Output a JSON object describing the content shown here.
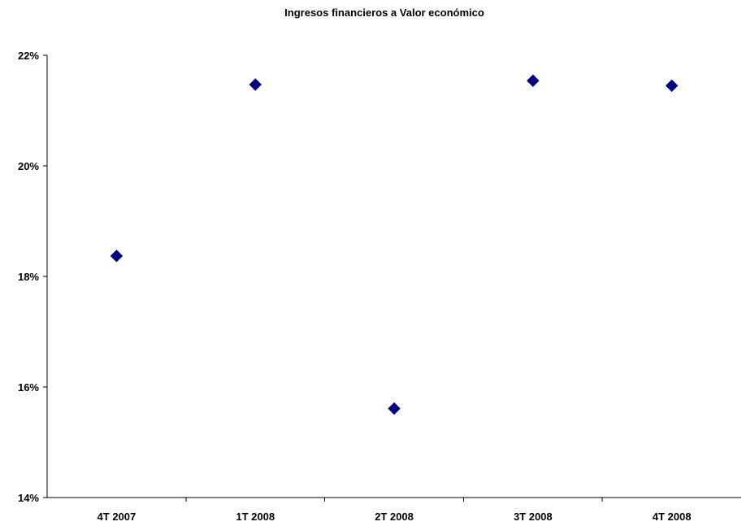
{
  "chart_data": {
    "type": "scatter",
    "title": "Ingresos financieros a Valor económico",
    "xlabel": "",
    "ylabel": "",
    "categories": [
      "4T 2007",
      "1T 2008",
      "2T 2008",
      "3T 2008",
      "4T 2008"
    ],
    "series": [
      {
        "values": [
          18.37,
          21.47,
          15.61,
          21.54,
          21.45
        ],
        "color": "#000080",
        "marker": "diamond"
      }
    ],
    "ylim": [
      14,
      22
    ],
    "yticks": [
      14,
      16,
      18,
      20,
      22
    ],
    "ytick_labels": [
      "14%",
      "16%",
      "18%",
      "20%",
      "22%"
    ],
    "grid": false,
    "legend": "none"
  }
}
